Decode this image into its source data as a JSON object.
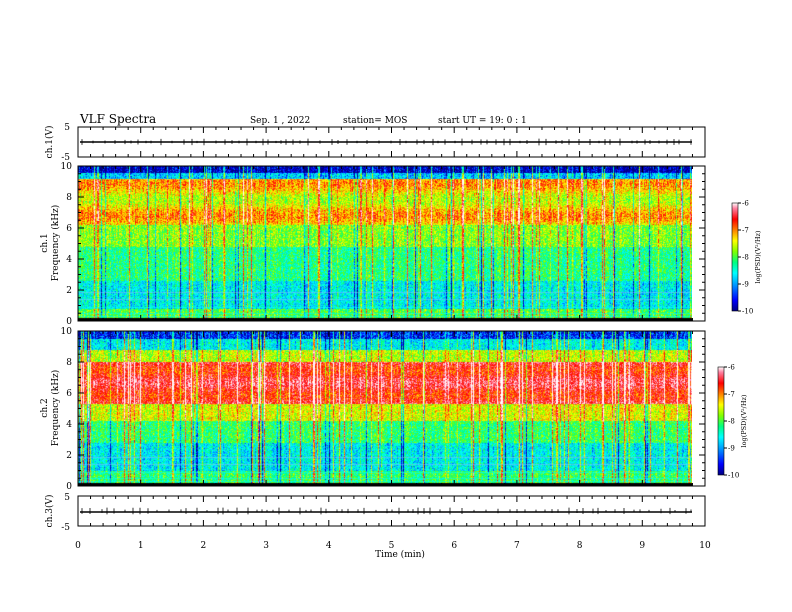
{
  "header": {
    "title": "VLF Spectra",
    "date": "Sep. 1 , 2022",
    "station": "station= MOS",
    "start": "start UT =   19: 0  : 1"
  },
  "colors": {
    "spectrogram_scale": [
      "#000080",
      "#0000ff",
      "#00a0ff",
      "#00ffff",
      "#00ff80",
      "#80ff00",
      "#ffff00",
      "#ff8000",
      "#ff0000",
      "#ff80a0",
      "#ffffff"
    ]
  },
  "chart_data": [
    {
      "type": "line",
      "panel": "ch1-waveform",
      "ylabel": "ch.1(V)",
      "ylim": [
        -5,
        5
      ],
      "yticks": [
        "5",
        "-5"
      ],
      "xlim": [
        0,
        10
      ],
      "level": 0
    },
    {
      "type": "heatmap",
      "panel": "ch1-spectrogram",
      "ylabel": "ch.1\nFrequency (kHz)",
      "ylim": [
        0,
        10
      ],
      "yticks": [
        "0",
        "2",
        "4",
        "6",
        "8",
        "10"
      ],
      "xlim": [
        0,
        10
      ],
      "data_end_min": 9.8,
      "colorbar": {
        "label": "log(PSD)(V²/Hz)",
        "range": [
          -10,
          -6
        ],
        "ticks": [
          "-6",
          "-7",
          "-8",
          "-9",
          "-10"
        ]
      }
    },
    {
      "type": "heatmap",
      "panel": "ch2-spectrogram",
      "ylabel": "ch.2\nFrequency (kHz)",
      "ylim": [
        0,
        10
      ],
      "yticks": [
        "0",
        "2",
        "4",
        "6",
        "8",
        "10"
      ],
      "xlim": [
        0,
        10
      ],
      "data_end_min": 9.8,
      "colorbar": {
        "label": "log(PSD)(V²/Hz)",
        "range": [
          -10,
          -6
        ],
        "ticks": [
          "-6",
          "-7",
          "-8",
          "-9",
          "-10"
        ]
      }
    },
    {
      "type": "line",
      "panel": "ch3-waveform",
      "ylabel": "ch.3(V)",
      "ylim": [
        -5,
        5
      ],
      "yticks": [
        "5",
        "-5"
      ],
      "xlim": [
        0,
        10
      ],
      "level": 0,
      "xlabel": "Time (min)",
      "xticks": [
        "0",
        "1",
        "2",
        "3",
        "4",
        "5",
        "6",
        "7",
        "8",
        "9",
        "10"
      ]
    }
  ]
}
